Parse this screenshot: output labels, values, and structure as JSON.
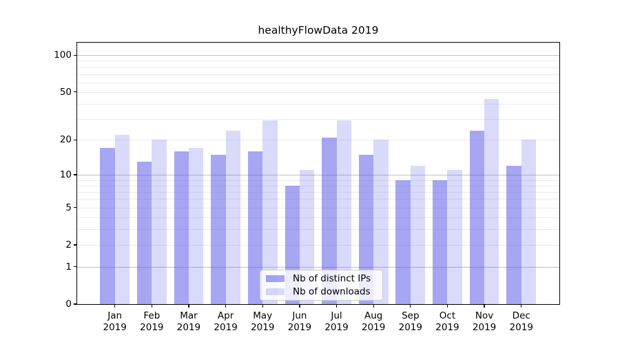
{
  "chart_data": {
    "type": "bar",
    "title": "healthyFlowData 2019",
    "categories": [
      "Jan",
      "Feb",
      "Mar",
      "Apr",
      "May",
      "Jun",
      "Jul",
      "Aug",
      "Sep",
      "Oct",
      "Nov",
      "Dec"
    ],
    "x_year": "2019",
    "series": [
      {
        "name": "Nb of distinct IPs",
        "color": "rgba(70,70,230,0.48)",
        "color_hex": "#a6a6f3",
        "values": [
          17,
          13,
          16,
          15,
          16,
          8,
          21,
          15,
          9,
          9,
          24,
          12
        ]
      },
      {
        "name": "Nb of downloads",
        "color": "rgba(70,70,230,0.20)",
        "color_hex": "#dadaf9",
        "values": [
          22,
          20,
          17,
          24,
          29,
          11,
          29,
          20,
          12,
          11,
          44,
          20
        ]
      }
    ],
    "yscale": "log1p",
    "ylim": [
      0,
      126
    ],
    "yticks": [
      0,
      1,
      2,
      5,
      10,
      20,
      50,
      100
    ],
    "major_gridlines": [
      1,
      10,
      100
    ],
    "minor_gridlines": [
      2,
      3,
      4,
      5,
      6,
      7,
      8,
      9,
      20,
      30,
      40,
      50,
      60,
      70,
      80,
      90
    ],
    "grid": "on",
    "legend_position": "lower center",
    "xlabel": "",
    "ylabel": "",
    "colors": {
      "grid_minor": "#ebebeb",
      "grid_major": "#c2c2c2",
      "spine": "#000000",
      "legend_border": "#cccccc"
    }
  }
}
